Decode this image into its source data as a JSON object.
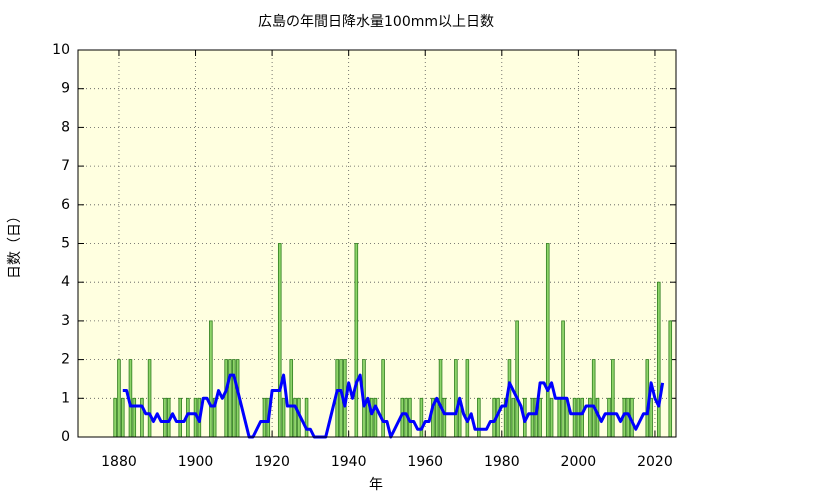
{
  "chart_data": {
    "type": "bar",
    "title": "広島の年間日降水量100mm以上日数",
    "xlabel": "年",
    "ylabel": "日数（日）",
    "x": [
      1879,
      1880,
      1881,
      1882,
      1883,
      1884,
      1885,
      1886,
      1887,
      1888,
      1889,
      1890,
      1891,
      1892,
      1893,
      1894,
      1895,
      1896,
      1897,
      1898,
      1899,
      1900,
      1901,
      1902,
      1903,
      1904,
      1905,
      1906,
      1907,
      1908,
      1909,
      1910,
      1911,
      1912,
      1913,
      1914,
      1915,
      1916,
      1917,
      1918,
      1919,
      1920,
      1921,
      1922,
      1923,
      1924,
      1925,
      1926,
      1927,
      1928,
      1929,
      1930,
      1931,
      1932,
      1933,
      1934,
      1935,
      1936,
      1937,
      1938,
      1939,
      1940,
      1941,
      1942,
      1943,
      1944,
      1945,
      1946,
      1947,
      1948,
      1949,
      1950,
      1951,
      1952,
      1953,
      1954,
      1955,
      1956,
      1957,
      1958,
      1959,
      1960,
      1961,
      1962,
      1963,
      1964,
      1965,
      1966,
      1967,
      1968,
      1969,
      1970,
      1971,
      1972,
      1973,
      1974,
      1975,
      1976,
      1977,
      1978,
      1979,
      1980,
      1981,
      1982,
      1983,
      1984,
      1985,
      1986,
      1987,
      1988,
      1989,
      1990,
      1991,
      1992,
      1993,
      1994,
      1995,
      1996,
      1997,
      1998,
      1999,
      2000,
      2001,
      2002,
      2003,
      2004,
      2005,
      2006,
      2007,
      2008,
      2009,
      2010,
      2011,
      2012,
      2013,
      2014,
      2015,
      2016,
      2017,
      2018,
      2019,
      2020,
      2021,
      2022,
      2023,
      2024
    ],
    "series": [
      {
        "type": "bar",
        "color": "#8ed46a",
        "edge_color": "#2e7d1e",
        "values": [
          1,
          2,
          1,
          0,
          2,
          1,
          0,
          1,
          0,
          2,
          0,
          0,
          0,
          1,
          1,
          0,
          0,
          1,
          0,
          1,
          0,
          1,
          1,
          0,
          0,
          3,
          1,
          0,
          0,
          2,
          2,
          2,
          2,
          0,
          0,
          0,
          0,
          0,
          0,
          1,
          1,
          0,
          0,
          5,
          1,
          0,
          2,
          1,
          1,
          0,
          1,
          0,
          0,
          0,
          0,
          0,
          0,
          0,
          2,
          2,
          2,
          0,
          0,
          5,
          0,
          2,
          1,
          1,
          1,
          0,
          2,
          0,
          0,
          0,
          0,
          1,
          1,
          1,
          0,
          0,
          1,
          0,
          0,
          1,
          1,
          2,
          1,
          0,
          0,
          2,
          1,
          0,
          2,
          0,
          0,
          1,
          0,
          0,
          0,
          1,
          1,
          0,
          1,
          2,
          1,
          3,
          0,
          1,
          0,
          1,
          1,
          1,
          0,
          5,
          1,
          0,
          1,
          3,
          1,
          0,
          1,
          1,
          1,
          0,
          1,
          2,
          1,
          0,
          0,
          1,
          2,
          0,
          0,
          1,
          1,
          1,
          0,
          0,
          0,
          2,
          1,
          0,
          4,
          0,
          0,
          3
        ]
      },
      {
        "type": "line",
        "color": "#0000ff",
        "values": [
          null,
          null,
          1.2,
          1.2,
          0.8,
          0.8,
          0.8,
          0.8,
          0.6,
          0.6,
          0.4,
          0.6,
          0.4,
          0.4,
          0.4,
          0.6,
          0.4,
          0.4,
          0.4,
          0.6,
          0.6,
          0.6,
          0.4,
          1.0,
          1.0,
          0.8,
          0.8,
          1.2,
          1.0,
          1.2,
          1.6,
          1.6,
          1.2,
          0.8,
          0.4,
          0,
          0,
          0.2,
          0.4,
          0.4,
          0.4,
          1.2,
          1.2,
          1.2,
          1.6,
          0.8,
          0.8,
          0.8,
          0.6,
          0.4,
          0.2,
          0.2,
          0,
          0,
          0,
          0,
          0.4,
          0.8,
          1.2,
          1.2,
          0.8,
          1.4,
          1.0,
          1.4,
          1.6,
          0.8,
          1.0,
          0.6,
          0.8,
          0.6,
          0.4,
          0.4,
          0,
          0.2,
          0.4,
          0.6,
          0.6,
          0.4,
          0.4,
          0.2,
          0.2,
          0.4,
          0.4,
          0.8,
          1.0,
          0.8,
          0.6,
          0.6,
          0.6,
          0.6,
          1.0,
          0.6,
          0.4,
          0.6,
          0.2,
          0.2,
          0.2,
          0.2,
          0.4,
          0.4,
          0.6,
          0.8,
          0.8,
          1.4,
          1.2,
          1.0,
          0.8,
          0.4,
          0.6,
          0.6,
          0.6,
          1.4,
          1.4,
          1.2,
          1.4,
          1.0,
          1.0,
          1.0,
          1.0,
          0.6,
          0.6,
          0.6,
          0.6,
          0.8,
          0.8,
          0.8,
          0.6,
          0.4,
          0.6,
          0.6,
          0.6,
          0.6,
          0.4,
          0.6,
          0.6,
          0.4,
          0.2,
          0.4,
          0.6,
          0.6,
          1.4,
          1.0,
          0.8,
          1.4,
          null,
          null
        ]
      }
    ],
    "xlim": [
      1869.3,
      2025.5
    ],
    "xticks": [
      1880,
      1900,
      1920,
      1940,
      1960,
      1980,
      2000,
      2020
    ],
    "ylim": [
      0,
      10
    ],
    "yticks": [
      0,
      1,
      2,
      3,
      4,
      5,
      6,
      7,
      8,
      9,
      10
    ],
    "grid": true,
    "plot_background": "#ffffe0"
  }
}
